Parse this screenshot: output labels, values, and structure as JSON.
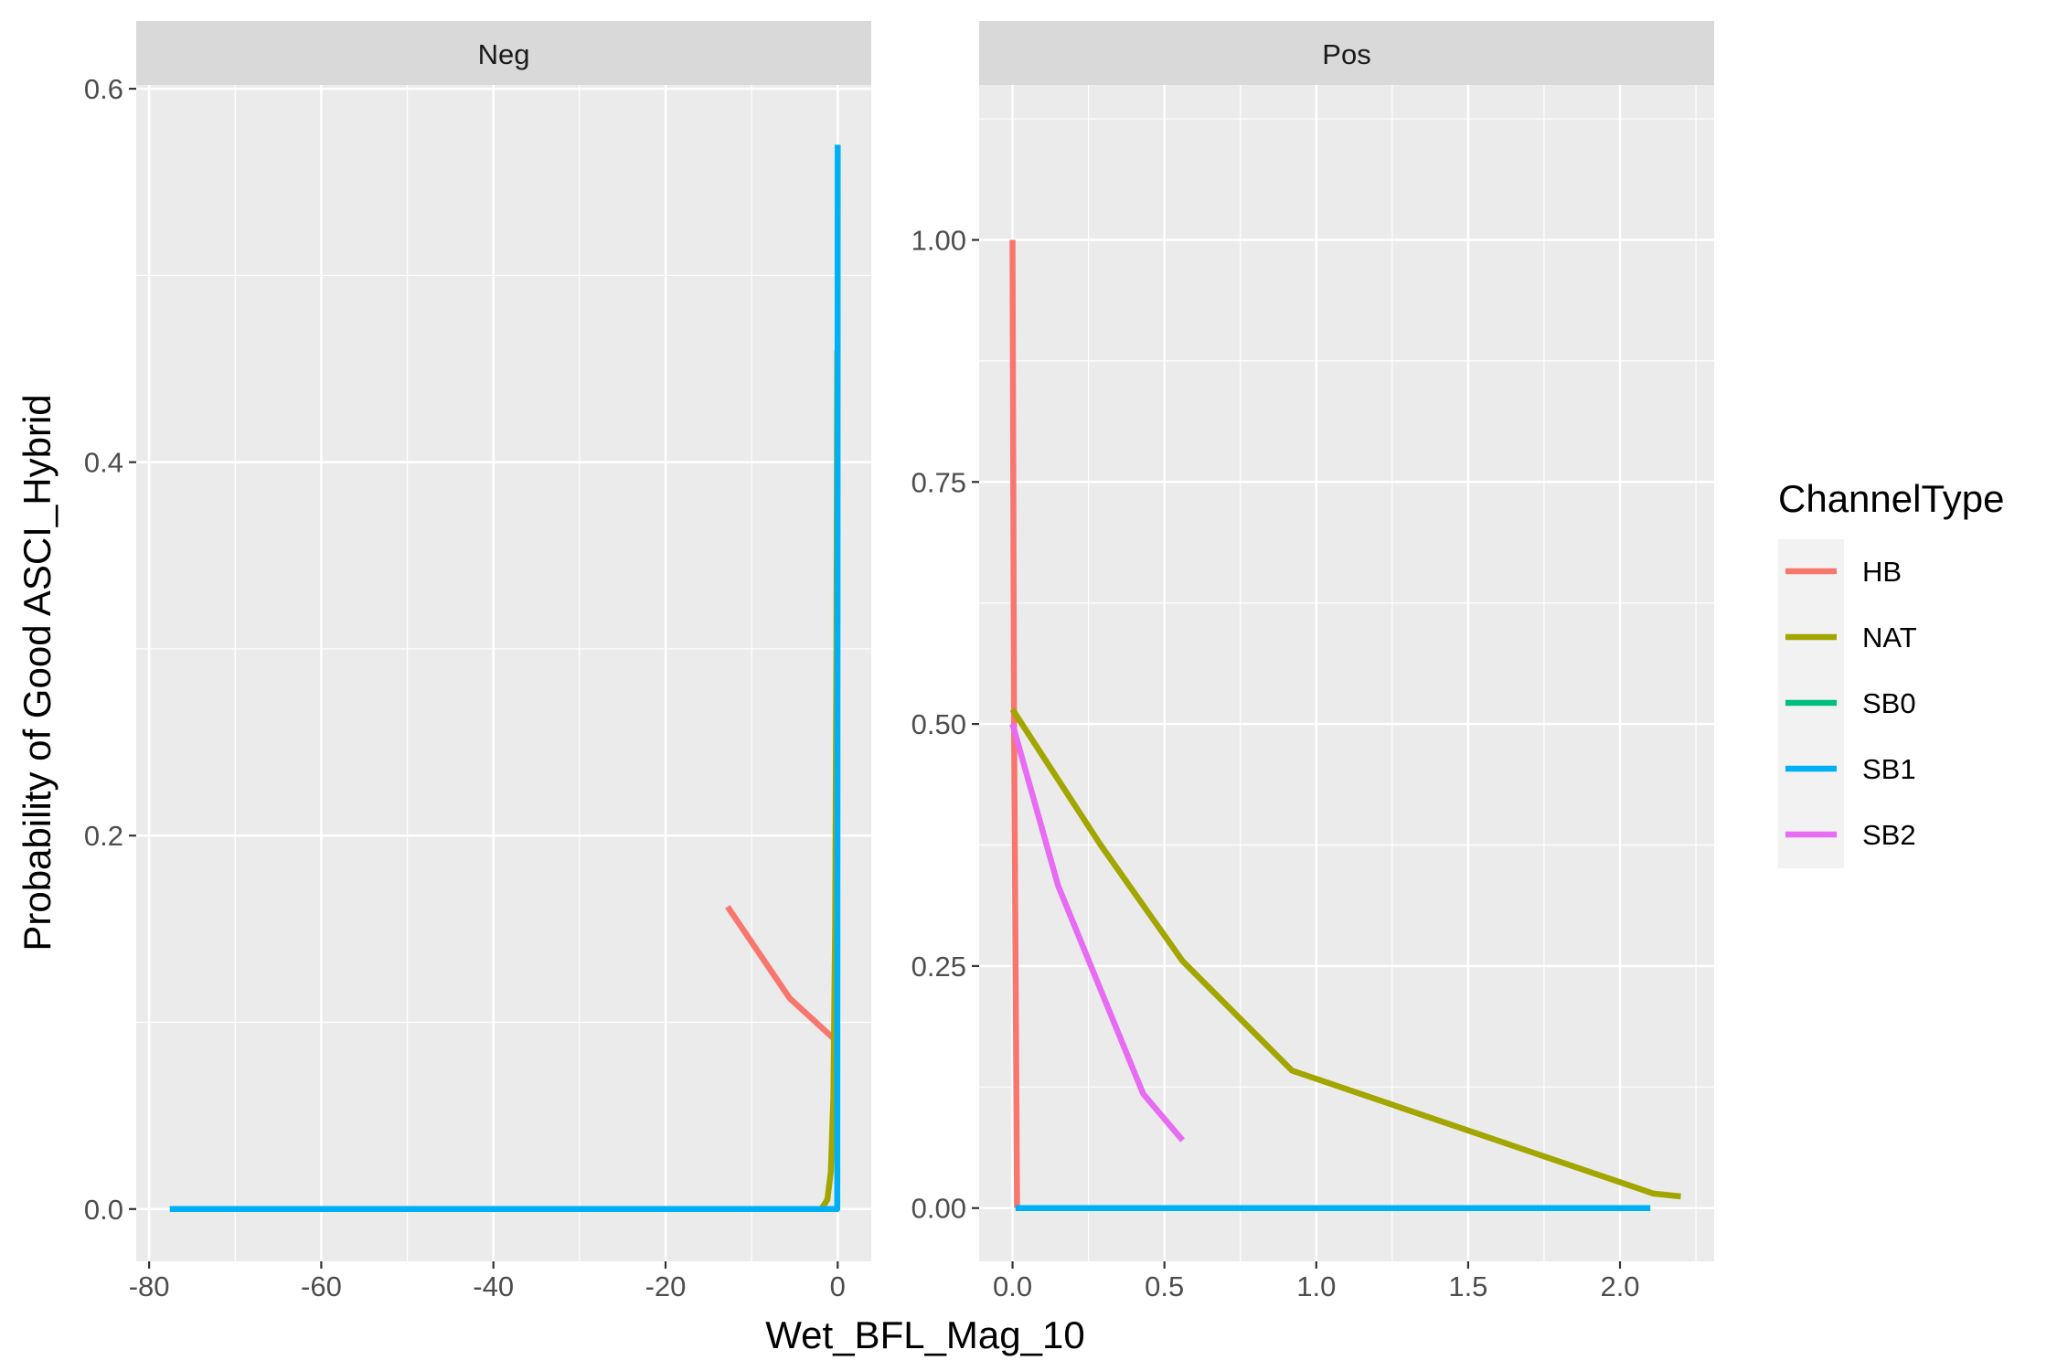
{
  "chart_data": {
    "type": "line",
    "xlabel": "Wet_BFL_Mag_10",
    "ylabel": "Probability of Good ASCI_Hybrid",
    "legend": {
      "title": "ChannelType",
      "placement": "right",
      "entries": [
        {
          "name": "HB",
          "color": "#F8766D"
        },
        {
          "name": "NAT",
          "color": "#A3A500"
        },
        {
          "name": "SB0",
          "color": "#00BF7D"
        },
        {
          "name": "SB1",
          "color": "#00B0F6"
        },
        {
          "name": "SB2",
          "color": "#E76BF3"
        }
      ]
    },
    "panels": [
      {
        "strip": "Neg",
        "xlim": [
          -81.5,
          3.9
        ],
        "ylim": [
          -0.028,
          0.602
        ],
        "x_ticks": [
          -80,
          -60,
          -40,
          -20,
          0
        ],
        "x_tick_labels": [
          "-80",
          "-60",
          "-40",
          "-20",
          "0"
        ],
        "y_ticks": [
          0.0,
          0.2,
          0.4,
          0.6
        ],
        "y_tick_labels": [
          "0.0",
          "0.2",
          "0.4",
          "0.6"
        ],
        "series": [
          {
            "name": "HB",
            "color": "#F8766D",
            "points": [
              [
                -12.8,
                0.162
              ],
              [
                -5.6,
                0.113
              ],
              [
                -0.4,
                0.091
              ]
            ]
          },
          {
            "name": "SB2",
            "color": "#E76BF3",
            "points": [
              [
                -15.3,
                0.0
              ],
              [
                -0.3,
                0.0
              ]
            ]
          },
          {
            "name": "NAT",
            "color": "#A3A500",
            "points": [
              [
                -1.9,
                0.0
              ],
              [
                -1.2,
                0.005
              ],
              [
                -0.8,
                0.02
              ],
              [
                -0.5,
                0.06
              ],
              [
                -0.3,
                0.15
              ],
              [
                -0.15,
                0.3
              ],
              [
                -0.05,
                0.46
              ]
            ]
          },
          {
            "name": "SB1",
            "color": "#00B0F6",
            "points": [
              [
                -77.6,
                0.0
              ],
              [
                -0.05,
                0.0
              ],
              [
                0.0,
                0.57
              ]
            ]
          }
        ]
      },
      {
        "strip": "Pos",
        "xlim": [
          -0.11,
          2.31
        ],
        "ylim": [
          -0.055,
          1.16
        ],
        "x_ticks": [
          0.0,
          0.5,
          1.0,
          1.5,
          2.0
        ],
        "x_tick_labels": [
          "0.0",
          "0.5",
          "1.0",
          "1.5",
          "2.0"
        ],
        "y_ticks": [
          0.0,
          0.25,
          0.5,
          0.75,
          1.0
        ],
        "y_tick_labels": [
          "0.00",
          "0.25",
          "0.50",
          "0.75",
          "1.00"
        ],
        "series": [
          {
            "name": "HB",
            "color": "#F8766D",
            "points": [
              [
                0.0,
                1.0
              ],
              [
                0.005,
                0.5
              ],
              [
                0.015,
                0.0
              ]
            ]
          },
          {
            "name": "NAT",
            "color": "#A3A500",
            "points": [
              [
                0.0,
                0.515
              ],
              [
                0.29,
                0.375
              ],
              [
                0.56,
                0.255
              ],
              [
                0.92,
                0.142
              ],
              [
                2.11,
                0.015
              ],
              [
                2.2,
                0.012
              ]
            ]
          },
          {
            "name": "SB2",
            "color": "#E76BF3",
            "points": [
              [
                0.0,
                0.5
              ],
              [
                0.15,
                0.333
              ],
              [
                0.43,
                0.118
              ],
              [
                0.56,
                0.07
              ]
            ]
          },
          {
            "name": "SB1",
            "color": "#00B0F6",
            "points": [
              [
                0.01,
                0.0
              ],
              [
                2.1,
                0.0
              ]
            ]
          }
        ]
      }
    ]
  }
}
